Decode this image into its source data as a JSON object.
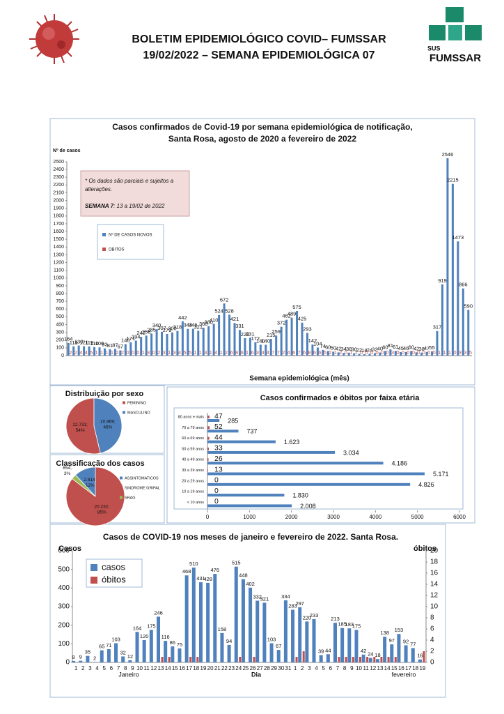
{
  "header": {
    "title_line1": "BOLETIM EPIDEMIOLÓGICO COVID– FUMSSAR",
    "title_line2": "19/02/2022 – SEMANA EPIDEMIOLÓGICA 07",
    "logo_sus": "SUS",
    "logo_name": "FUMSSAR"
  },
  "chart_data": [
    {
      "type": "bar",
      "title": "Casos confirmados de Covid-19 por semana epidemiológica de notificação,",
      "subtitle": "Santa Rosa, agosto de 2020 a fevereiro de 2022",
      "ylabel": "Nº de casos",
      "xlabel": "Semana epidemiológica (mês)",
      "note": {
        "line1": "* Os dados são parciais e sujeitos a",
        "line2": "alterações.",
        "week": "SEMANA 7",
        "period": ": 13 a 19/02 de 2022"
      },
      "ylim": [
        0,
        2500
      ],
      "yticks": [
        0,
        100,
        200,
        300,
        400,
        500,
        600,
        700,
        800,
        900,
        1000,
        1100,
        1200,
        1300,
        1400,
        1500,
        1600,
        1700,
        1800,
        1900,
        2000,
        2100,
        2200,
        2300,
        2400,
        2500
      ],
      "series": [
        {
          "name": "Nº DE CASOS NOVOS",
          "color": "#4f81bd",
          "values": [
            164,
            119,
            130,
            121,
            119,
            110,
            106,
            93,
            81,
            87,
            67,
            148,
            171,
            194,
            242,
            258,
            285,
            340,
            307,
            279,
            300,
            318,
            442,
            344,
            346,
            321,
            360,
            380,
            410,
            524,
            672,
            528,
            421,
            331,
            226,
            231,
            172,
            140,
            140,
            215,
            259,
            372,
            462,
            489,
            575,
            425,
            293,
            142,
            104,
            74,
            60,
            50,
            42,
            34,
            38,
            30,
            22,
            18,
            24,
            32,
            40,
            60,
            81,
            61,
            45,
            46,
            60,
            42,
            38,
            47,
            55,
            317,
            919,
            2546,
            2215,
            1473,
            866,
            590
          ]
        },
        {
          "name": "OBITOS",
          "color": "#c0504d",
          "values": [
            2,
            2,
            4,
            4,
            5,
            1,
            1,
            1,
            1,
            2,
            2,
            0,
            0,
            0,
            1,
            3,
            0,
            2,
            3,
            1,
            3,
            4,
            5,
            5,
            1,
            1,
            3,
            1,
            4,
            1,
            2,
            6,
            8,
            6,
            1,
            6,
            3,
            4,
            4,
            7,
            7,
            2,
            4,
            6,
            7,
            6,
            8,
            6,
            6,
            5,
            2,
            1,
            2,
            0,
            1,
            1,
            0,
            0,
            0,
            0,
            0,
            0,
            3,
            0,
            0,
            0,
            0,
            0,
            0,
            0,
            0,
            1,
            1,
            1,
            0,
            3,
            3,
            5
          ]
        }
      ]
    },
    {
      "type": "pie",
      "title": "Distribuição por sexo",
      "categories": [
        "FEMININO",
        "MASCULINO"
      ],
      "values": [
        12731,
        10969
      ],
      "value_labels": [
        "12.731;",
        "10.969;"
      ],
      "percent_labels": [
        "54%",
        "46%"
      ],
      "colors": [
        "#c0504d",
        "#4f81bd"
      ]
    },
    {
      "type": "pie",
      "title": "Classificação dos casos",
      "categories": [
        "ASSINTOMATICOS",
        "SINDROME GRIPAL",
        "SRAG"
      ],
      "values": [
        2814,
        20232,
        654
      ],
      "value_labels": [
        "2.814;",
        "20.232;",
        "654;"
      ],
      "percent_labels": [
        "12%",
        "85%",
        "3%"
      ],
      "colors": [
        "#4f81bd",
        "#c0504d",
        "#9bbb59"
      ]
    },
    {
      "type": "barh",
      "title": "Casos confirmados e óbitos  por faixa etária",
      "categories": [
        "80 anos e mais",
        "70 a 79 anos",
        "60 a 69 anos",
        "50 a 59 anos",
        "40 a 49 anos",
        "30 a 39 anos",
        "20 a 29 anos",
        "10 a 19 anos",
        "< 10 anos"
      ],
      "xlim": [
        0,
        6000
      ],
      "xticks": [
        0,
        1000,
        2000,
        3000,
        4000,
        5000,
        6000
      ],
      "series": [
        {
          "name": "casos",
          "color": "#4f81bd",
          "values": [
            285,
            737,
            1623,
            3034,
            4186,
            5171,
            4826,
            1830,
            2008
          ],
          "value_labels": [
            "285",
            "737",
            "1.623",
            "3.034",
            "4.186",
            "5.171",
            "4.826",
            "1.830",
            "2.008"
          ]
        },
        {
          "name": "óbitos",
          "color": "#c0504d",
          "values": [
            47,
            52,
            44,
            33,
            26,
            13,
            0,
            0,
            0
          ]
        }
      ]
    },
    {
      "type": "bar",
      "title": "Casos de COVID-19 nos meses de janeiro e fevereiro de 2022. Santa Rosa.",
      "ylabel": "Casos",
      "y2label": "óbitos",
      "xlabel": "Dia",
      "month_labels": [
        "Janeiro",
        "fevereiro"
      ],
      "categories": [
        "1",
        "2",
        "3",
        "4",
        "5",
        "6",
        "7",
        "8",
        "9",
        "10",
        "11",
        "12",
        "13",
        "14",
        "15",
        "16",
        "17",
        "18",
        "19",
        "20",
        "21",
        "22",
        "23",
        "24",
        "25",
        "26",
        "27",
        "28",
        "29",
        "30",
        "31",
        "1",
        "2",
        "3",
        "4",
        "5",
        "6",
        "7",
        "8",
        "9",
        "10",
        "11",
        "12",
        "13",
        "14",
        "15",
        "16",
        "17",
        "18",
        "19"
      ],
      "ylim": [
        0,
        600
      ],
      "yticks": [
        0,
        100,
        200,
        300,
        400,
        500,
        600
      ],
      "y2lim": [
        0,
        20
      ],
      "y2ticks": [
        0,
        2,
        4,
        6,
        8,
        10,
        12,
        14,
        16,
        18,
        20
      ],
      "series": [
        {
          "name": "casos",
          "color": "#4f81bd",
          "values": [
            8,
            9,
            35,
            2,
            65,
            71,
            103,
            32,
            12,
            164,
            120,
            175,
            246,
            116,
            86,
            75,
            468,
            510,
            431,
            428,
            476,
            158,
            94,
            515,
            448,
            402,
            332,
            321,
            103,
            67,
            334,
            283,
            297,
            220,
            233,
            39,
            44,
            213,
            185,
            183,
            175,
            42,
            24,
            18,
            138,
            97,
            153,
            92,
            77,
            16
          ]
        },
        {
          "name": "óbitos",
          "color": "#c0504d",
          "axis": "y2",
          "values": [
            0,
            0,
            0,
            0,
            0,
            0,
            0,
            0,
            0,
            0,
            0,
            0,
            1,
            1,
            0,
            0,
            1,
            1,
            0,
            0,
            0,
            0,
            0,
            1,
            0,
            1,
            0,
            0,
            0,
            0,
            0,
            1,
            2,
            0,
            0,
            0,
            0,
            1,
            1,
            1,
            1,
            1,
            1,
            1,
            1,
            1,
            0,
            0,
            0,
            2
          ]
        }
      ]
    }
  ]
}
